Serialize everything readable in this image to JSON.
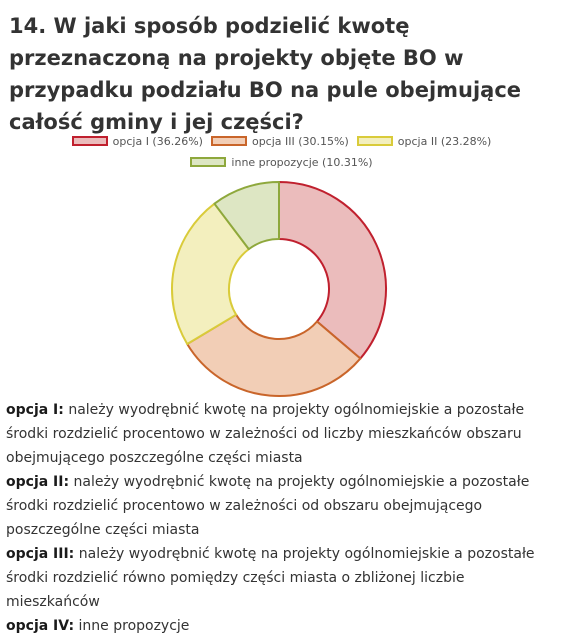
{
  "question": {
    "title": "14. W jaki sposób podzielić kwotę przeznaczoną na projekty objęte BO w przypadku podziału BO na pule obejmujące całość gminy i jej części?"
  },
  "chart_data": {
    "type": "pie",
    "style": "doughnut",
    "legend_position": "top",
    "series": [
      {
        "name": "opcja I",
        "label": "opcja I (36.26%)",
        "value": 36.26,
        "fill": "#ebbcbc",
        "stroke": "#c0202e"
      },
      {
        "name": "opcja III",
        "label": "opcja III (30.15%)",
        "value": 30.15,
        "fill": "#f2ceb6",
        "stroke": "#c9652a"
      },
      {
        "name": "opcja II",
        "label": "opcja II (23.28%)",
        "value": 23.28,
        "fill": "#f3efbe",
        "stroke": "#d9cb3a"
      },
      {
        "name": "inne propozycje",
        "label": "inne propozycje (10.31%)",
        "value": 10.31,
        "fill": "#dde6c3",
        "stroke": "#8ea83c"
      }
    ]
  },
  "descriptions": [
    {
      "term": "opcja I:",
      "text": " należy wyodrębnić kwotę na projekty ogólnomiejskie a pozostałe środki rozdzielić procentowo w zależności od liczby mieszkańców obszaru obejmującego poszczególne części miasta"
    },
    {
      "term": "opcja II:",
      "text": " należy wyodrębnić kwotę na projekty ogólnomiejskie a pozostałe środki rozdzielić procentowo w zależności od  obszaru obejmującego poszczególne części miasta"
    },
    {
      "term": "opcja III:",
      "text": " należy wyodrębnić kwotę na projekty ogólnomiejskie a pozostałe środki rozdzielić równo pomiędzy części miasta o zbliżonej liczbie mieszkańców"
    },
    {
      "term": "opcja IV:",
      "text": " inne propozycje"
    }
  ]
}
